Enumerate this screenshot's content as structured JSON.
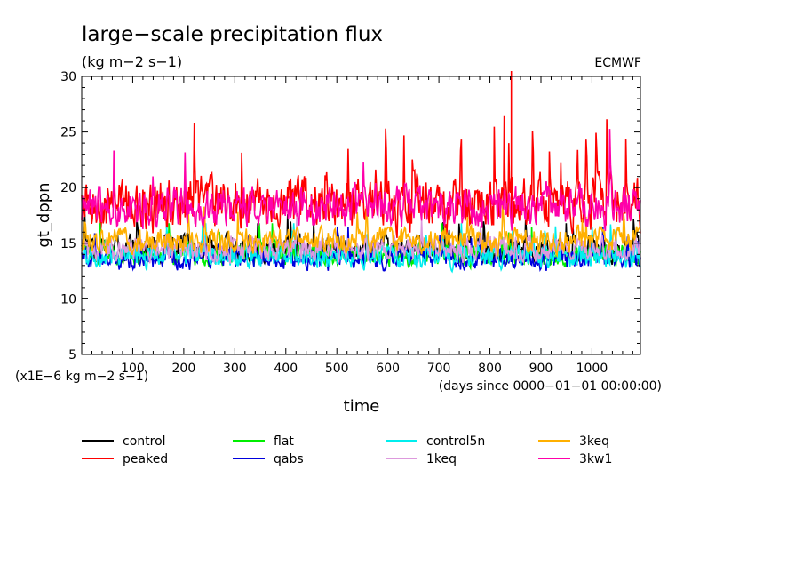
{
  "header": {
    "title": "large−scale precipitation flux",
    "units": "(kg m−2 s−1)",
    "source": "ECMWF"
  },
  "axes": {
    "y_scale_note": "(x1E−6 kg m−2 s−1)",
    "x_units": "(days since 0000−01−01 00:00:00)"
  },
  "chart_data": {
    "type": "line",
    "title": "large−scale precipitation flux",
    "xlabel": "time",
    "ylabel": "gt_dppn",
    "xlim": [
      0,
      1095
    ],
    "ylim": [
      5,
      30
    ],
    "x_ticks": [
      100,
      200,
      300,
      400,
      500,
      600,
      700,
      800,
      900,
      1000
    ],
    "y_ticks": [
      5,
      10,
      15,
      20,
      25,
      30
    ],
    "grid": false,
    "legend_position": "bottom",
    "series": [
      {
        "name": "control",
        "color": "#000000",
        "mean": 14.5,
        "amplitude": 1.6,
        "min": 12.3,
        "max": 17.6
      },
      {
        "name": "peaked",
        "color": "#ff0000",
        "mean": 18.5,
        "amplitude": 3.2,
        "min": 14.5,
        "max": 30.5
      },
      {
        "name": "flat",
        "color": "#00ee00",
        "mean": 14.0,
        "amplitude": 1.3,
        "min": 11.6,
        "max": 16.8
      },
      {
        "name": "qabs",
        "color": "#0000dd",
        "mean": 13.6,
        "amplitude": 1.3,
        "min": 11.0,
        "max": 16.5
      },
      {
        "name": "control5n",
        "color": "#00eeee",
        "mean": 13.8,
        "amplitude": 1.4,
        "min": 10.5,
        "max": 16.8
      },
      {
        "name": "1keq",
        "color": "#dd99dd",
        "mean": 14.5,
        "amplitude": 1.5,
        "min": 11.2,
        "max": 17.5
      },
      {
        "name": "3keq",
        "color": "#ffb000",
        "mean": 15.3,
        "amplitude": 1.5,
        "min": 12.5,
        "max": 19.5
      },
      {
        "name": "3kw1",
        "color": "#ff00aa",
        "mean": 18.3,
        "amplitude": 2.5,
        "min": 14.5,
        "max": 26.5
      }
    ],
    "annotations": [
      "ECMWF",
      "(x1E−6 kg m−2 s−1)",
      "(days since 0000−01−01 00:00:00)"
    ]
  }
}
